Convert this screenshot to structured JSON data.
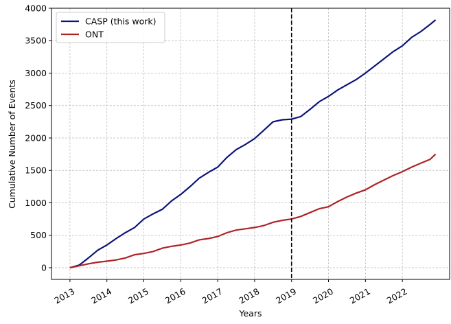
{
  "chart_data": {
    "type": "line",
    "xlabel": "Years",
    "ylabel": "Cumulative Number of Events",
    "x": [
      2013,
      2013.25,
      2013.5,
      2013.75,
      2014,
      2014.25,
      2014.5,
      2014.75,
      2015,
      2015.25,
      2015.5,
      2015.75,
      2016,
      2016.25,
      2016.5,
      2016.75,
      2017,
      2017.25,
      2017.5,
      2017.75,
      2018,
      2018.25,
      2018.5,
      2018.75,
      2019,
      2019.25,
      2019.5,
      2019.75,
      2020,
      2020.25,
      2020.5,
      2020.75,
      2021,
      2021.25,
      2021.5,
      2021.75,
      2022,
      2022.25,
      2022.5,
      2022.75,
      2022.9
    ],
    "series": [
      {
        "name": "CASP (this work)",
        "color": "#0d137a",
        "values": [
          0,
          40,
          150,
          270,
          350,
          450,
          540,
          620,
          750,
          830,
          900,
          1030,
          1130,
          1250,
          1380,
          1470,
          1550,
          1700,
          1820,
          1900,
          1990,
          2120,
          2250,
          2280,
          2290,
          2330,
          2440,
          2560,
          2640,
          2740,
          2820,
          2900,
          3000,
          3110,
          3220,
          3330,
          3420,
          3550,
          3640,
          3750,
          3820
        ]
      },
      {
        "name": "ONT",
        "color": "#b02226",
        "values": [
          0,
          30,
          60,
          85,
          100,
          120,
          150,
          200,
          220,
          250,
          300,
          330,
          350,
          380,
          430,
          450,
          480,
          540,
          580,
          600,
          620,
          650,
          700,
          730,
          750,
          790,
          850,
          910,
          940,
          1020,
          1090,
          1150,
          1200,
          1280,
          1350,
          1420,
          1480,
          1550,
          1610,
          1670,
          1750
        ]
      }
    ],
    "vline": 2019,
    "xlim": [
      2012.5,
      2023.28
    ],
    "ylim": [
      -180,
      4000
    ],
    "xticks": [
      2013,
      2014,
      2015,
      2016,
      2017,
      2018,
      2019,
      2020,
      2021,
      2022
    ],
    "yticks": [
      0,
      500,
      1000,
      1500,
      2000,
      2500,
      3000,
      3500,
      4000
    ],
    "grid": true,
    "legend": "upper left"
  }
}
